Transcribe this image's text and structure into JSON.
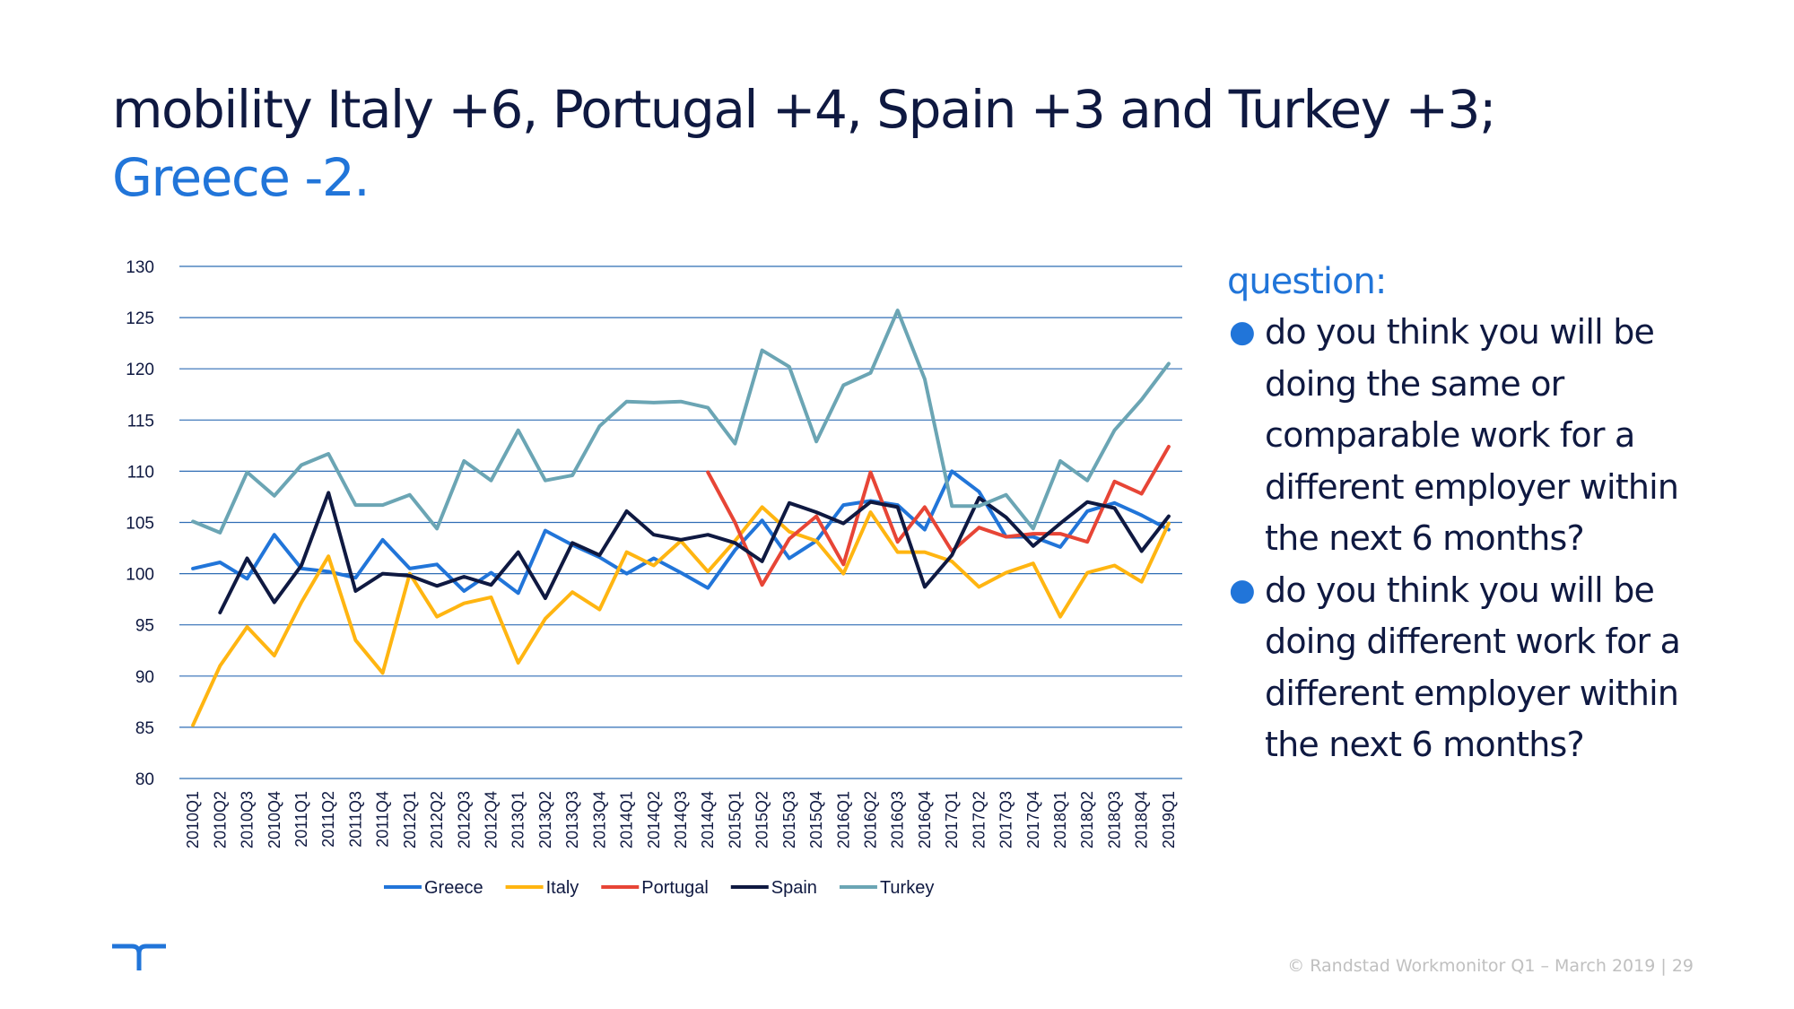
{
  "title": {
    "line1": "mobility Italy +6, Portugal +4, Spain +3 and Turkey +3;",
    "line2": "Greece -2."
  },
  "question": {
    "heading": "question:",
    "items": [
      "do you think you will be doing the same or comparable work for a different employer within the next 6 months?",
      "do you think you will be doing different work for a different employer within the next 6 months?"
    ]
  },
  "footer": {
    "text": "© Randstad Workmonitor Q1 – March 2019",
    "separator": "|",
    "page": "29"
  },
  "chart_data": {
    "type": "line",
    "title": "",
    "xlabel": "",
    "ylabel": "",
    "ylim": [
      80,
      130
    ],
    "yticks": [
      80,
      85,
      90,
      95,
      100,
      105,
      110,
      115,
      120,
      125,
      130
    ],
    "grid": true,
    "legend": "bottom",
    "categories": [
      "2010Q1",
      "2010Q2",
      "2010Q3",
      "2010Q4",
      "2011Q1",
      "2011Q2",
      "2011Q3",
      "2011Q4",
      "2012Q1",
      "2012Q2",
      "2012Q3",
      "2012Q4",
      "2013Q1",
      "2013Q2",
      "2013Q3",
      "2013Q4",
      "2014Q1",
      "2014Q2",
      "2014Q3",
      "2014Q4",
      "2015Q1",
      "2015Q2",
      "2015Q3",
      "2015Q4",
      "2016Q1",
      "2016Q2",
      "2016Q3",
      "2016Q4",
      "2017Q1",
      "2017Q2",
      "2017Q3",
      "2017Q4",
      "2018Q1",
      "2018Q2",
      "2018Q3",
      "2018Q4",
      "2019Q1"
    ],
    "series": [
      {
        "name": "Greece",
        "color": "#2175d9",
        "values": [
          100.5,
          101.1,
          99.5,
          103.8,
          100.5,
          100.2,
          99.6,
          103.3,
          100.5,
          100.9,
          98.3,
          100.1,
          98.1,
          104.2,
          102.8,
          101.6,
          100,
          101.5,
          100.1,
          98.6,
          102.3,
          105.2,
          101.5,
          103.2,
          106.7,
          107.1,
          106.7,
          104.3,
          110,
          108,
          103.6,
          103.6,
          102.6,
          106.1,
          106.9,
          105.7,
          104.3
        ]
      },
      {
        "name": "Italy",
        "color": "#ffb511",
        "values": [
          85.2,
          91,
          94.8,
          92,
          97.2,
          101.7,
          93.5,
          90.3,
          100,
          95.8,
          97.1,
          97.7,
          91.3,
          95.6,
          98.2,
          96.5,
          102.1,
          100.8,
          103.2,
          100.2,
          103.2,
          106.5,
          104.1,
          103.2,
          100,
          106,
          102.1,
          102.1,
          101.2,
          98.7,
          100.1,
          101,
          95.8,
          100.1,
          100.8,
          99.2,
          104.9
        ]
      },
      {
        "name": "Portugal",
        "color": "#e74536",
        "values": [
          null,
          null,
          null,
          null,
          null,
          null,
          null,
          null,
          null,
          null,
          null,
          null,
          null,
          null,
          null,
          null,
          null,
          null,
          null,
          109.9,
          105,
          98.9,
          103.4,
          105.6,
          100.9,
          109.9,
          103.1,
          106.5,
          102.2,
          104.5,
          103.6,
          103.9,
          103.9,
          103.1,
          109,
          107.8,
          112.4
        ]
      },
      {
        "name": "Spain",
        "color": "#0f1941",
        "values": [
          null,
          96.2,
          101.5,
          97.2,
          100.8,
          107.9,
          98.3,
          100,
          99.8,
          98.8,
          99.7,
          98.9,
          102.1,
          97.6,
          103,
          101.8,
          106.1,
          103.8,
          103.3,
          103.8,
          103,
          101.2,
          106.9,
          106,
          104.9,
          107,
          106.5,
          98.7,
          101.8,
          107.4,
          105.5,
          102.7,
          104.9,
          107,
          106.4,
          102.2,
          105.6
        ]
      },
      {
        "name": "Turkey",
        "color": "#6ba5b4",
        "values": [
          105.1,
          104,
          109.9,
          107.6,
          110.6,
          111.7,
          106.7,
          106.7,
          107.7,
          104.4,
          111,
          109.1,
          114,
          109.1,
          109.6,
          114.4,
          116.8,
          116.7,
          116.8,
          116.2,
          112.7,
          121.8,
          120.2,
          112.9,
          118.4,
          119.6,
          125.7,
          119,
          106.6,
          106.6,
          107.7,
          104.4,
          111,
          109.1,
          114,
          117,
          120.5
        ]
      }
    ]
  }
}
